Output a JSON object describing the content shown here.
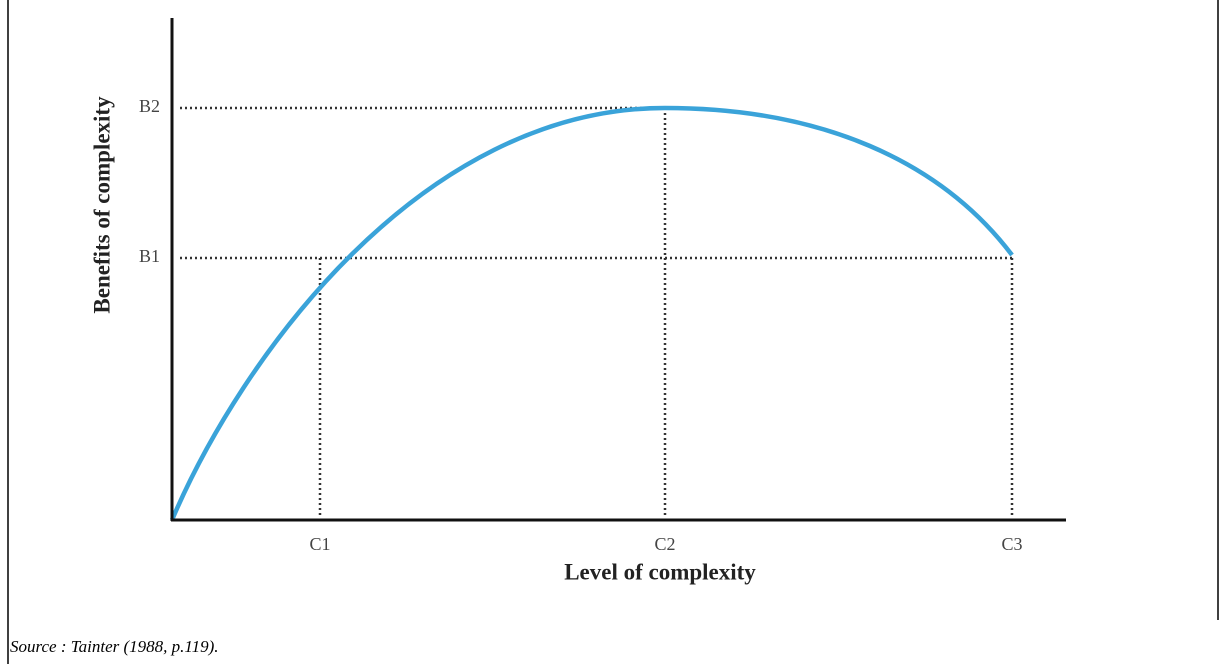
{
  "figure": {
    "y_axis_title": "Benefits of complexity",
    "x_axis_title": "Level of complexity",
    "y_labels": [
      "B1",
      "B2"
    ],
    "x_labels": [
      "C1",
      "C2",
      "C3"
    ],
    "source": "Source : Tainter (1988, p.119)."
  }
}
